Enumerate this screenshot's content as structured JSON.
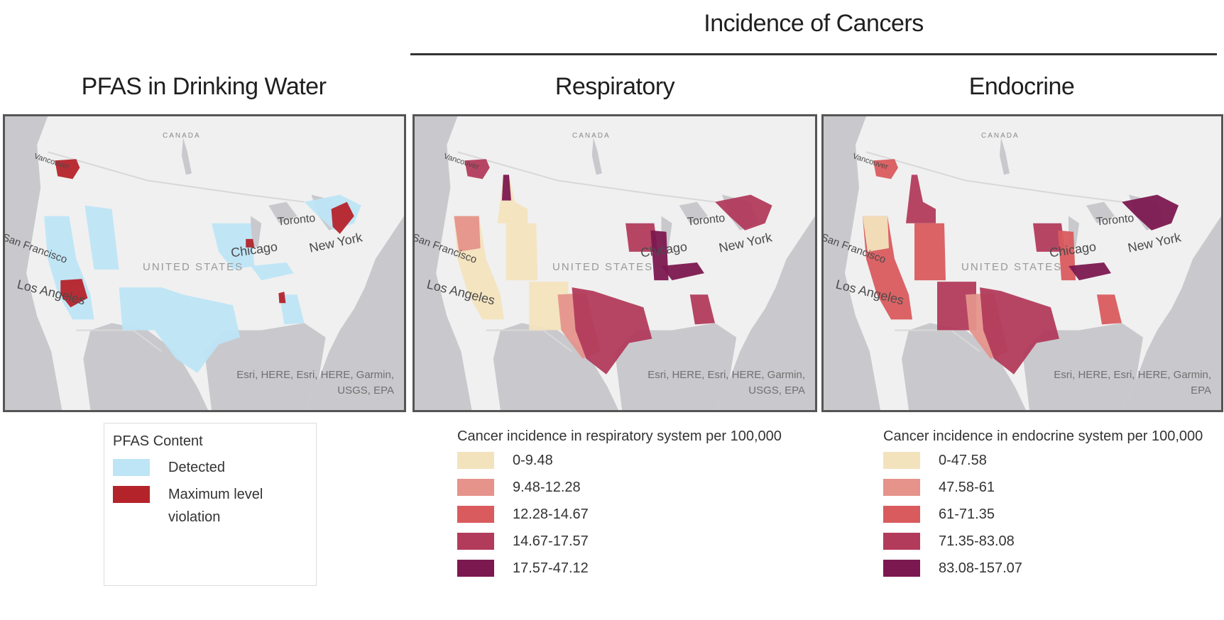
{
  "figure": {
    "group_title": "Incidence of Cancers",
    "panels": [
      {
        "id": "pfas",
        "title": "PFAS in Drinking Water"
      },
      {
        "id": "resp",
        "title": "Respiratory"
      },
      {
        "id": "endo",
        "title": "Endocrine"
      }
    ]
  },
  "map_labels": {
    "country_top": "CANADA",
    "country_main": "UNITED STATES",
    "cities": [
      "Vancouver",
      "San Francisco",
      "Los Angeles",
      "Chicago",
      "Toronto",
      "New York"
    ],
    "attribution_pfas": [
      "Esri, HERE, Esri, HERE, Garmin,",
      "USGS, EPA"
    ],
    "attribution_resp": [
      "Esri, HERE, Esri, HERE, Garmin,",
      "USGS, EPA"
    ],
    "attribution_endo": [
      "Esri, HERE, Esri, HERE, Garmin,",
      "EPA"
    ]
  },
  "colors": {
    "land": "#f0f0f0",
    "water": "#c9c9cd",
    "border_line": "#d8d8d8",
    "pfas_detected": "#bde5f5",
    "pfas_violation": "#b5232a",
    "scale": [
      "#f3e3bd",
      "#e5938b",
      "#d95b5e",
      "#b23b5c",
      "#7c1850"
    ]
  },
  "legends": {
    "pfas": {
      "title": "PFAS Content",
      "items": [
        {
          "label": "Detected",
          "color": "#bde5f5"
        },
        {
          "label": "Maximum level violation",
          "color": "#b5232a"
        }
      ]
    },
    "respiratory": {
      "title": "Cancer incidence in respiratory system per 100,000",
      "items": [
        {
          "label": "0-9.48",
          "color": "#f3e3bd"
        },
        {
          "label": "9.48-12.28",
          "color": "#e5938b"
        },
        {
          "label": "12.28-14.67",
          "color": "#d95b5e"
        },
        {
          "label": "14.67-17.57",
          "color": "#b23b5c"
        },
        {
          "label": "17.57-47.12",
          "color": "#7c1850"
        }
      ]
    },
    "endocrine": {
      "title": "Cancer incidence in endocrine system per 100,000",
      "items": [
        {
          "label": "0-47.58",
          "color": "#f3e3bd"
        },
        {
          "label": "47.58-61",
          "color": "#e5938b"
        },
        {
          "label": "61-71.35",
          "color": "#d95b5e"
        },
        {
          "label": "71.35-83.08",
          "color": "#b23b5c"
        },
        {
          "label": "83.08-157.07",
          "color": "#7c1850"
        }
      ]
    }
  },
  "regions": {
    "pfas": [
      {
        "name": "Washington",
        "class": "violation"
      },
      {
        "name": "California",
        "class": "detected"
      },
      {
        "name": "Los Angeles area",
        "class": "violation"
      },
      {
        "name": "Idaho/Utah",
        "class": "detected"
      },
      {
        "name": "Texas/Oklahoma/New Mexico",
        "class": "detected"
      },
      {
        "name": "Illinois/Indiana",
        "class": "detected"
      },
      {
        "name": "Chicago",
        "class": "violation"
      },
      {
        "name": "Kentucky",
        "class": "detected"
      },
      {
        "name": "Georgia",
        "class": "detected"
      },
      {
        "name": "Georgia north",
        "class": "violation"
      },
      {
        "name": "New York/New England",
        "class": "detected"
      },
      {
        "name": "New York City",
        "class": "violation"
      }
    ],
    "respiratory": [
      {
        "name": "Washington",
        "class": 3
      },
      {
        "name": "California",
        "class": 0
      },
      {
        "name": "Northern California",
        "class": 1
      },
      {
        "name": "Idaho",
        "class": 0
      },
      {
        "name": "Idaho north",
        "class": 4
      },
      {
        "name": "Utah",
        "class": 0
      },
      {
        "name": "New Mexico",
        "class": 0
      },
      {
        "name": "Texas west",
        "class": 1
      },
      {
        "name": "Texas east / Oklahoma / Louisiana",
        "class": 3
      },
      {
        "name": "Iowa/Illinois",
        "class": 3
      },
      {
        "name": "Indiana",
        "class": 4
      },
      {
        "name": "Kentucky",
        "class": 4
      },
      {
        "name": "Georgia",
        "class": 3
      },
      {
        "name": "New York/New England",
        "class": 3
      }
    ],
    "endocrine": [
      {
        "name": "Washington",
        "class": 2
      },
      {
        "name": "California",
        "class": 2
      },
      {
        "name": "Northern California",
        "class": 0
      },
      {
        "name": "Idaho",
        "class": 3
      },
      {
        "name": "Utah",
        "class": 2
      },
      {
        "name": "New Mexico",
        "class": 3
      },
      {
        "name": "Texas west",
        "class": 1
      },
      {
        "name": "Texas east / Oklahoma / Louisiana",
        "class": 3
      },
      {
        "name": "Iowa/Illinois",
        "class": 3
      },
      {
        "name": "Indiana",
        "class": 2
      },
      {
        "name": "Kentucky",
        "class": 4
      },
      {
        "name": "Georgia",
        "class": 2
      },
      {
        "name": "New York/New England",
        "class": 4
      }
    ]
  }
}
